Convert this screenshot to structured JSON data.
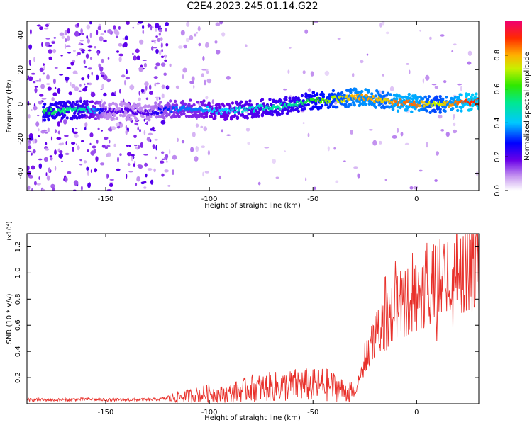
{
  "figure_title": "C2E4.2023.245.01.14.G22",
  "chart_data": [
    {
      "type": "heatmap",
      "title": "C2E4.2023.245.01.14.G22",
      "xlabel": "Height of straight line (km)",
      "ylabel": "Frequency (Hz)",
      "xlim": [
        -188,
        30
      ],
      "ylim": [
        -50,
        48
      ],
      "xticks": [
        -150,
        -100,
        -50,
        0
      ],
      "yticks": [
        -40,
        -20,
        0,
        20,
        40
      ],
      "colorbar": {
        "label": "Normalized spectral amplitude",
        "range": [
          0.0,
          1.0
        ],
        "ticks": [
          0.0,
          0.2,
          0.4,
          0.6,
          0.8
        ]
      },
      "signal_track": {
        "x": [
          -175,
          -160,
          -150,
          -140,
          -130,
          -120,
          -115,
          -110,
          -105,
          -100,
          -95,
          -90,
          -85,
          -80,
          -75,
          -70,
          -65,
          -60,
          -55,
          -50,
          -45,
          -40,
          -35,
          -30,
          -25,
          -20,
          -15,
          -10,
          -5,
          0,
          5,
          10,
          15,
          20,
          25,
          30
        ],
        "frequency": [
          -4,
          -3,
          -4,
          -4,
          -5,
          -3,
          -3,
          -2,
          -3,
          -3,
          -4,
          -4,
          -3,
          -3,
          -2,
          -2,
          -1,
          0,
          1,
          2,
          2,
          3,
          3,
          4,
          4,
          3,
          2,
          1,
          1,
          0,
          0,
          0,
          0,
          1,
          1,
          1
        ],
        "amplitude": [
          0.55,
          0.5,
          0.2,
          0.2,
          0.2,
          0.3,
          0.35,
          0.35,
          0.35,
          0.4,
          0.4,
          0.4,
          0.45,
          0.45,
          0.45,
          0.5,
          0.5,
          0.5,
          0.55,
          0.6,
          0.65,
          0.7,
          0.75,
          0.8,
          0.82,
          0.8,
          0.75,
          0.85,
          0.85,
          0.85,
          0.75,
          0.7,
          0.8,
          0.85,
          0.9,
          0.9
        ]
      }
    },
    {
      "type": "line",
      "xlabel": "Height of straight line (km)",
      "ylabel": "SNR (10 * v/v)",
      "y_multiplier": "(x10⁴)",
      "xlim": [
        -188,
        30
      ],
      "ylim": [
        0,
        1.3
      ],
      "xticks": [
        -150,
        -100,
        -50,
        0
      ],
      "yticks": [
        0.2,
        0.4,
        0.6,
        0.8,
        1.0,
        1.2
      ],
      "ytick_labels": [
        "0.2",
        "0.4",
        "0.6",
        "0.8",
        "1.0",
        "1.2"
      ],
      "color": "#e8302a",
      "series": [
        {
          "x": [
            -188,
            -180,
            -170,
            -160,
            -150,
            -140,
            -130,
            -120,
            -115,
            -110,
            -105,
            -100,
            -95,
            -90,
            -85,
            -80,
            -75,
            -70,
            -65,
            -60,
            -55,
            -50,
            -45,
            -40,
            -35,
            -30,
            -27,
            -25,
            -22,
            -20,
            -17,
            -15,
            -12,
            -10,
            -5,
            0,
            5,
            10,
            15,
            20,
            25,
            30
          ],
          "y": [
            0.03,
            0.03,
            0.03,
            0.035,
            0.03,
            0.03,
            0.03,
            0.04,
            0.05,
            0.06,
            0.07,
            0.08,
            0.07,
            0.08,
            0.1,
            0.12,
            0.12,
            0.13,
            0.13,
            0.14,
            0.15,
            0.14,
            0.15,
            0.13,
            0.1,
            0.08,
            0.2,
            0.35,
            0.45,
            0.5,
            0.6,
            0.62,
            0.68,
            0.75,
            0.78,
            0.82,
            0.88,
            0.93,
            0.98,
            1.03,
            1.08,
            1.12
          ]
        }
      ]
    }
  ]
}
